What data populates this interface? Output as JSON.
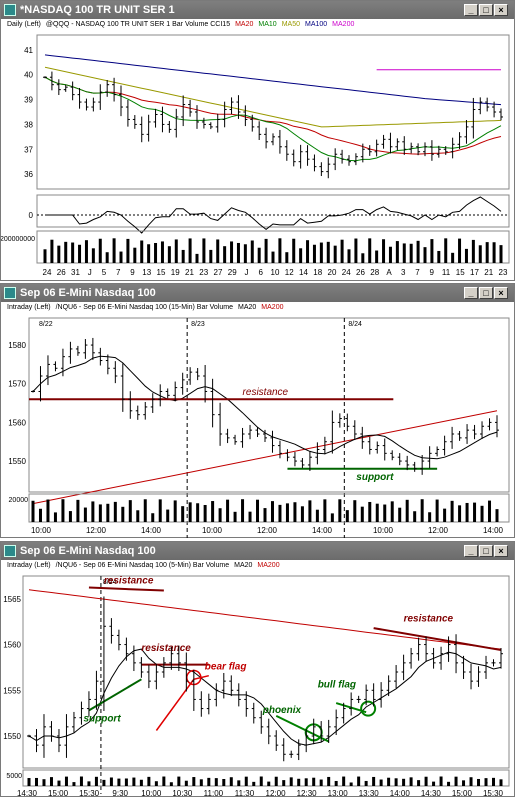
{
  "panels": [
    {
      "title": "*NASDAQ 100 TR UNIT SER 1",
      "legend": [
        {
          "text": "Daily (Left)",
          "color": "#000000"
        },
        {
          "text": "@QQQ - NASDAQ 100 TR UNIT SER 1  Bar  Volume  CCI15",
          "color": "#000000"
        },
        {
          "text": "MA20",
          "color": "#c00000"
        },
        {
          "text": "MA10",
          "color": "#008000"
        },
        {
          "text": "MA50",
          "color": "#999900"
        },
        {
          "text": "MA100",
          "color": "#000080"
        },
        {
          "text": "MA200",
          "color": "#cc00cc"
        }
      ],
      "y_ticks": [
        "41",
        "40",
        "39",
        "38",
        "37",
        "36"
      ],
      "osc_tick": "0",
      "vol_tick": "200000000",
      "x_ticks": [
        "24",
        "26",
        "31",
        "J",
        "5",
        "7",
        "9",
        "13",
        "15",
        "19",
        "21",
        "23",
        "27",
        "29",
        "J",
        "6",
        "10",
        "12",
        "14",
        "18",
        "20",
        "24",
        "26",
        "28",
        "A",
        "3",
        "7",
        "9",
        "11",
        "15",
        "17",
        "21",
        "23"
      ]
    },
    {
      "title": "Sep 06  E-Mini Nasdaq 100",
      "legend": [
        {
          "text": "Intraday (Left)",
          "color": "#000000"
        },
        {
          "text": "/NQU6 - Sep 06  E-Mini Nasdaq 100 (15-Min)  Bar  Volume",
          "color": "#000000"
        },
        {
          "text": "MA20",
          "color": "#000000"
        },
        {
          "text": "MA200",
          "color": "#c00000"
        }
      ],
      "y_ticks": [
        "1580",
        "1570",
        "1560",
        "1550"
      ],
      "vol_tick": "20000",
      "date_markers": [
        "8/22",
        "8/23",
        "8/24"
      ],
      "x_ticks": [
        "10:00",
        "12:00",
        "14:00",
        "10:00",
        "12:00",
        "14:00",
        "10:00",
        "12:00",
        "14:00"
      ],
      "annotations": {
        "resistance": "resistance",
        "support": "support"
      }
    },
    {
      "title": "Sep 06  E-Mini Nasdaq 100",
      "legend": [
        {
          "text": "Intraday (Left)",
          "color": "#000000"
        },
        {
          "text": "/NQU6 - Sep 06  E-Mini Nasdaq 100 (5-Min)  Bar  Volume",
          "color": "#000000"
        },
        {
          "text": "MA20",
          "color": "#000000"
        },
        {
          "text": "MA200",
          "color": "#c00000"
        }
      ],
      "y_ticks": [
        "1565",
        "1560",
        "1555",
        "1550"
      ],
      "vol_tick": "5000",
      "date_markers": [
        "8/24"
      ],
      "x_ticks": [
        "14:30",
        "15:00",
        "15:30",
        "9:30",
        "10:00",
        "10:30",
        "11:00",
        "11:30",
        "12:00",
        "12:30",
        "13:00",
        "13:30",
        "14:00",
        "14:30",
        "15:00",
        "15:30"
      ],
      "annotations": {
        "resistance_left": "resistance",
        "resistance_mid": "resistance",
        "resistance_right": "resistance",
        "support": "support",
        "bear_flag": "bear flag",
        "bull_flag": "bull flag",
        "phoenix": "phoenix"
      }
    }
  ],
  "chart_data": [
    {
      "type": "bar",
      "title": "*NASDAQ 100 TR UNIT SER 1",
      "series_desc": "Daily OHLC bars of QQQ with moving averages, CCI15 oscillator and volume",
      "ylim": [
        35.4,
        41.6
      ],
      "closes": [
        39.9,
        39.6,
        39.4,
        39.5,
        39.2,
        38.9,
        38.7,
        38.9,
        39.3,
        39.6,
        39.2,
        38.7,
        38.2,
        38.0,
        37.6,
        38.1,
        38.4,
        38.0,
        37.8,
        38.3,
        38.8,
        38.5,
        38.1,
        38.0,
        37.9,
        38.2,
        38.6,
        38.9,
        38.5,
        38.2,
        37.9,
        37.6,
        37.3,
        37.5,
        37.1,
        36.8,
        36.5,
        36.9,
        36.6,
        36.3,
        36.1,
        36.4,
        36.8,
        36.6,
        36.5,
        36.7,
        37.0,
        36.9,
        37.2,
        37.4,
        37.1,
        37.3,
        37.0,
        37.1,
        36.9,
        37.1,
        36.8,
        37.0,
        36.9,
        37.2,
        37.5,
        37.9,
        38.6,
        38.9,
        38.7,
        38.5,
        38.3
      ],
      "ma": [
        {
          "name": "MA10",
          "color": "#008000"
        },
        {
          "name": "MA20",
          "color": "#c00000"
        },
        {
          "name": "MA50",
          "color": "#999900"
        },
        {
          "name": "MA100",
          "color": "#000080"
        },
        {
          "name": "MA200",
          "color": "#cc00cc",
          "value": 40.2
        }
      ],
      "cci_label": "CCI15",
      "volume_scale": 200000000
    },
    {
      "type": "bar",
      "title": "Sep 06 E-Mini Nasdaq 100 (15-Min)",
      "ylim": [
        1542,
        1587
      ],
      "closes": [
        1568,
        1572,
        1575,
        1574,
        1577,
        1579,
        1578,
        1580,
        1578,
        1576,
        1574,
        1572,
        1566,
        1563,
        1562,
        1564,
        1566,
        1568,
        1567,
        1569,
        1571,
        1573,
        1572,
        1568,
        1562,
        1557,
        1556,
        1555,
        1557,
        1558,
        1557,
        1556,
        1554,
        1552,
        1551,
        1550,
        1549,
        1551,
        1553,
        1555,
        1560,
        1561,
        1559,
        1557,
        1555,
        1553,
        1554,
        1552,
        1551,
        1550,
        1549,
        1548,
        1550,
        1552,
        1553,
        1555,
        1557,
        1556,
        1558,
        1557,
        1559,
        1560,
        1558
      ],
      "levels": [
        {
          "name": "resistance",
          "value": 1566,
          "color": "#800000"
        },
        {
          "name": "support",
          "value": 1548,
          "color": "#006400"
        }
      ],
      "ma200_range": [
        1539,
        1563
      ],
      "volume_scale": 20000
    },
    {
      "type": "bar",
      "title": "Sep 06 E-Mini Nasdaq 100 (5-Min)",
      "ylim": [
        1546.5,
        1567.5
      ],
      "closes": [
        1550,
        1549,
        1551,
        1550,
        1549,
        1551,
        1552,
        1553,
        1554,
        1556,
        1562,
        1561,
        1560,
        1559,
        1558,
        1557,
        1556,
        1557,
        1558,
        1559,
        1558,
        1556,
        1554,
        1553,
        1554,
        1555,
        1556,
        1555,
        1554,
        1553,
        1552,
        1551,
        1550,
        1549,
        1548,
        1548,
        1549,
        1550,
        1551,
        1550,
        1551,
        1552,
        1553,
        1554,
        1554,
        1555,
        1554,
        1555,
        1556,
        1557,
        1558,
        1559,
        1560,
        1559,
        1558,
        1559,
        1560,
        1558,
        1557,
        1556,
        1557,
        1558,
        1558,
        1559
      ],
      "levels": [
        {
          "name": "resistance",
          "from": 1565.8,
          "to": 1559.4,
          "color": "#800000"
        }
      ],
      "ma200_range": [
        1566,
        1559.5
      ],
      "volume_scale": 5000
    }
  ]
}
